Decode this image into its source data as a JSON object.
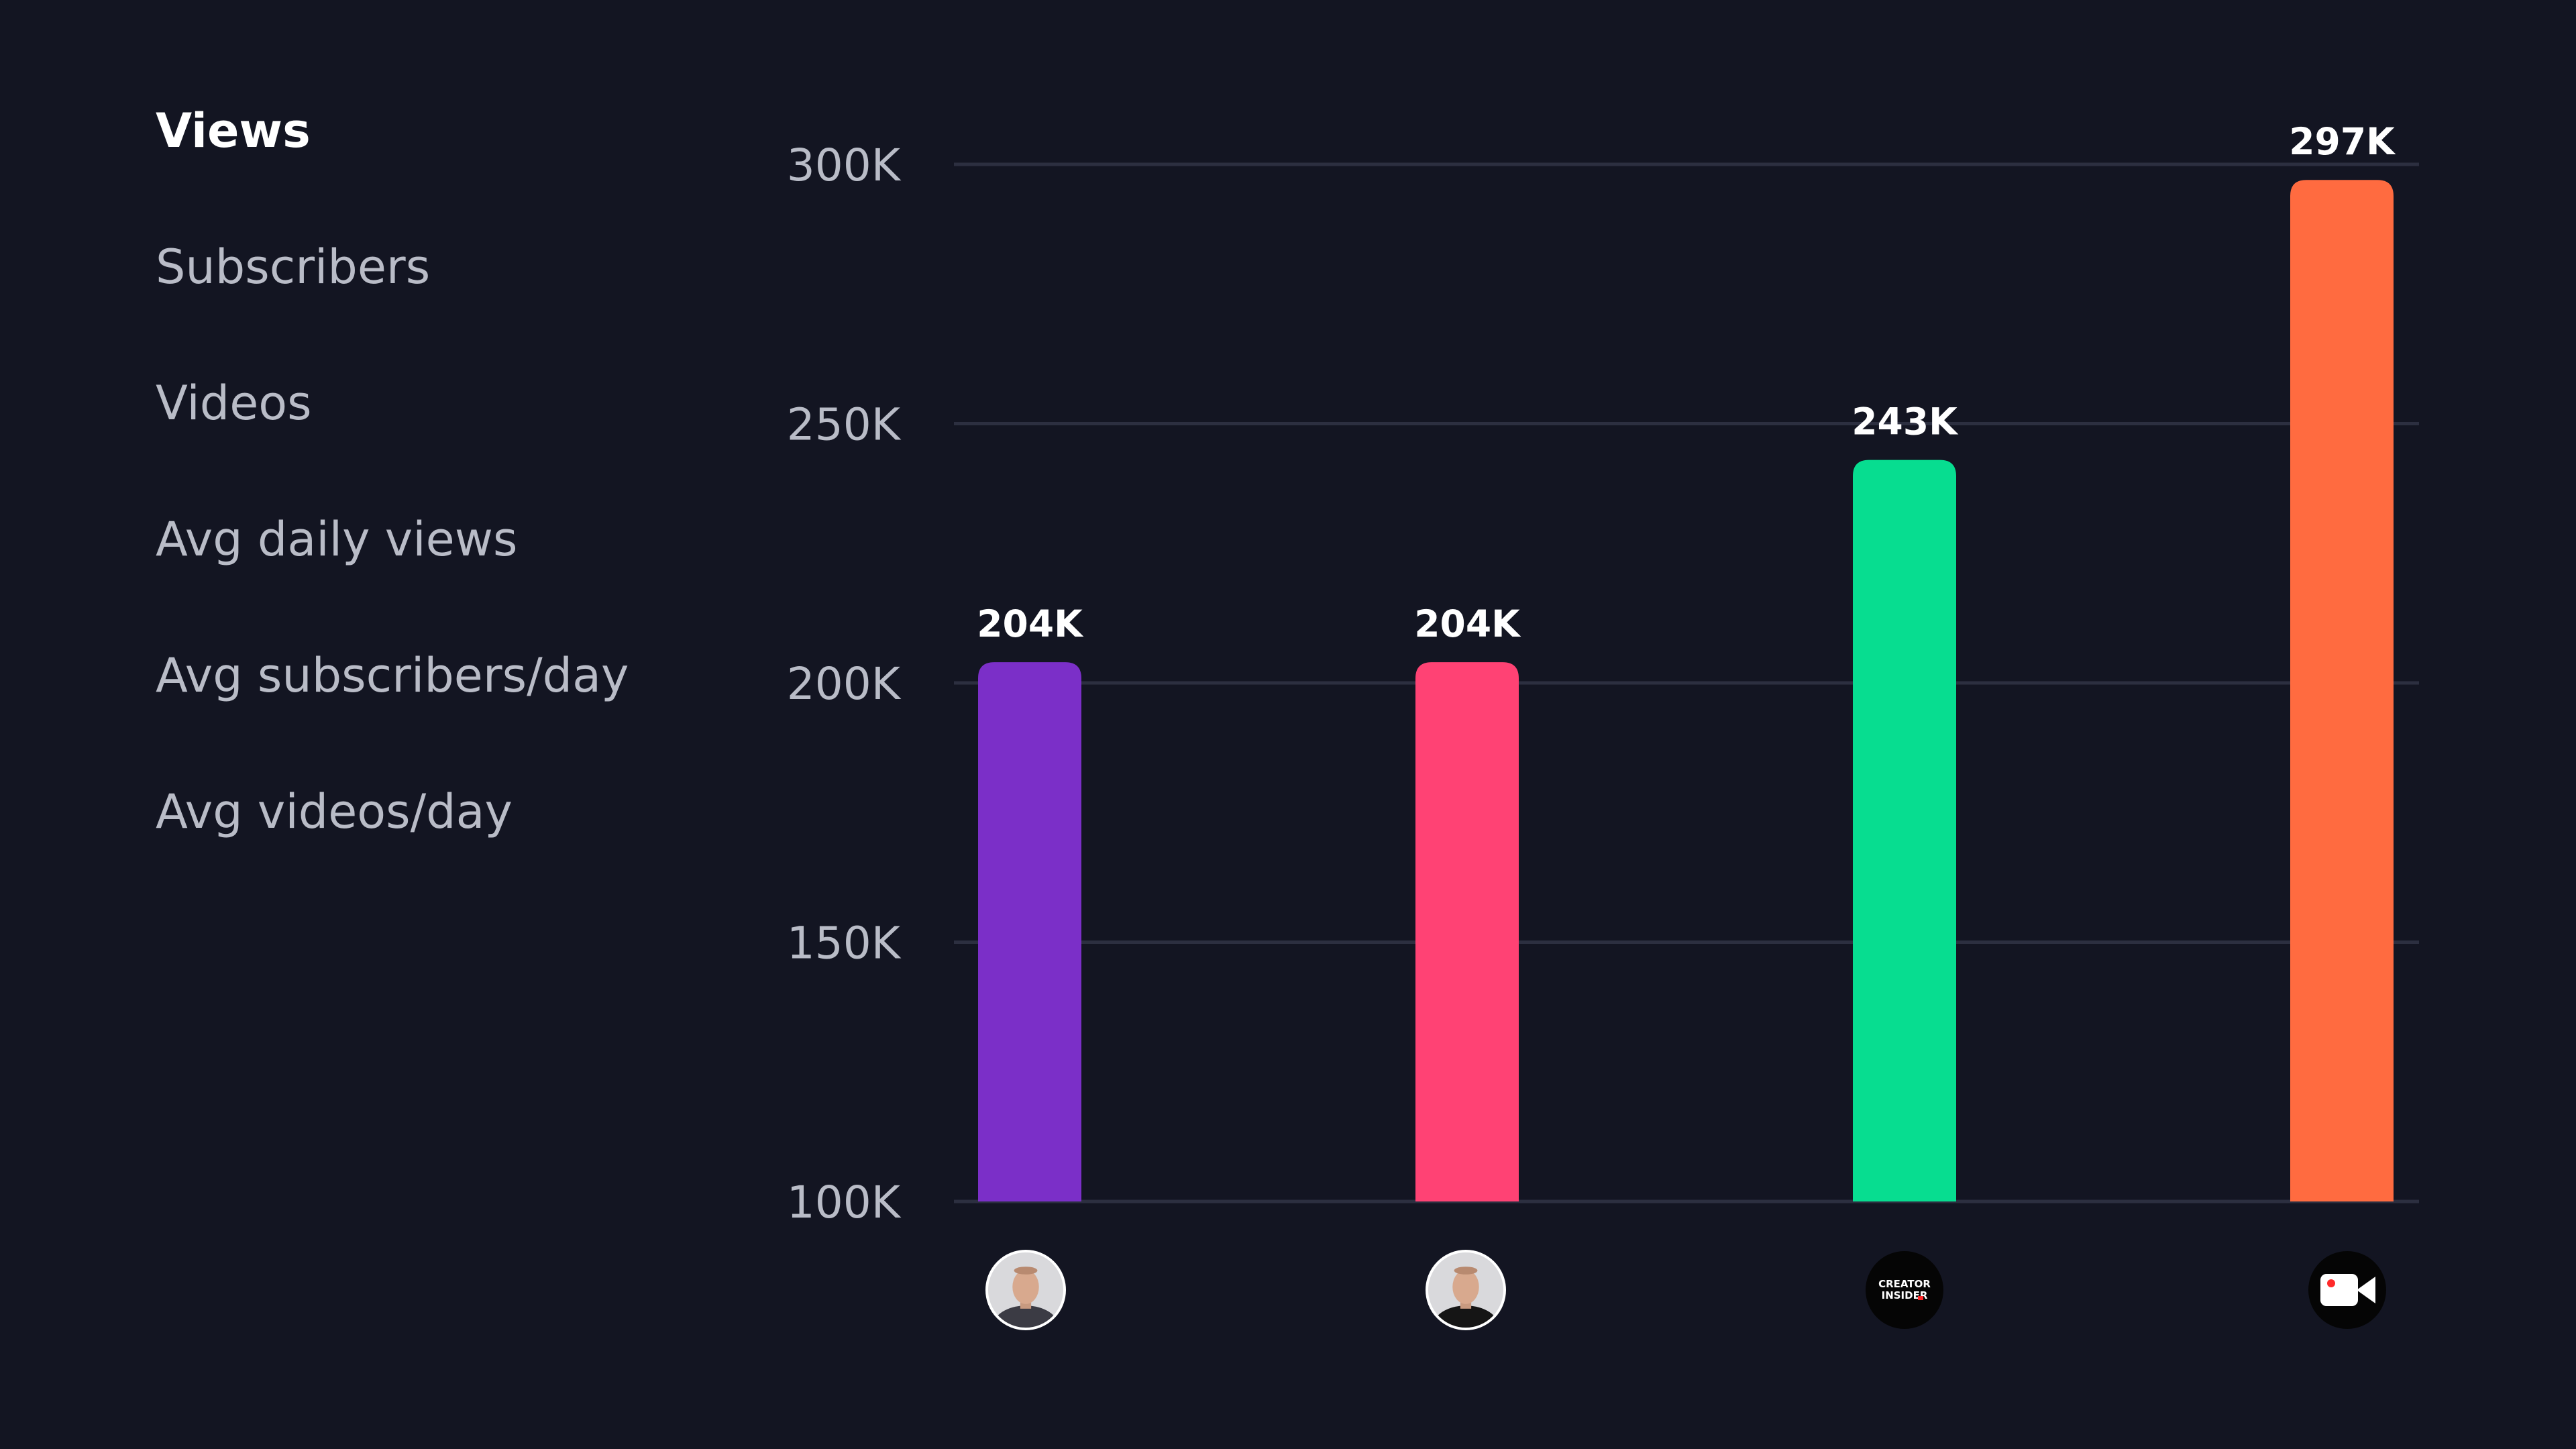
{
  "sidebar": {
    "items": [
      {
        "label": "Views",
        "active": true
      },
      {
        "label": "Subscribers",
        "active": false
      },
      {
        "label": "Videos",
        "active": false
      },
      {
        "label": "Avg daily views",
        "active": false
      },
      {
        "label": "Avg subscribers/day",
        "active": false
      },
      {
        "label": "Avg videos/day",
        "active": false
      }
    ]
  },
  "chart_data": {
    "type": "bar",
    "title": "",
    "xlabel": "",
    "ylabel": "",
    "ylim": [
      100000,
      300000
    ],
    "yticks": [
      {
        "value": 300000,
        "label": "300K"
      },
      {
        "value": 250000,
        "label": "250K"
      },
      {
        "value": 200000,
        "label": "200K"
      },
      {
        "value": 150000,
        "label": "150K"
      },
      {
        "value": 100000,
        "label": "100K"
      }
    ],
    "grid": true,
    "categories": [
      {
        "icon": "person-avatar-icon",
        "value": 204000,
        "value_label": "204K",
        "color": "#7b2fc8"
      },
      {
        "icon": "person-avatar-icon",
        "value": 204000,
        "value_label": "204K",
        "color": "#ff4274"
      },
      {
        "icon": "creator-insider-logo-icon",
        "icon_text": "CREATOR INSIDER",
        "value": 243000,
        "value_label": "243K",
        "color": "#07dd90"
      },
      {
        "icon": "video-camera-icon",
        "value": 297000,
        "value_label": "297K",
        "color": "#ff6b40"
      }
    ]
  }
}
